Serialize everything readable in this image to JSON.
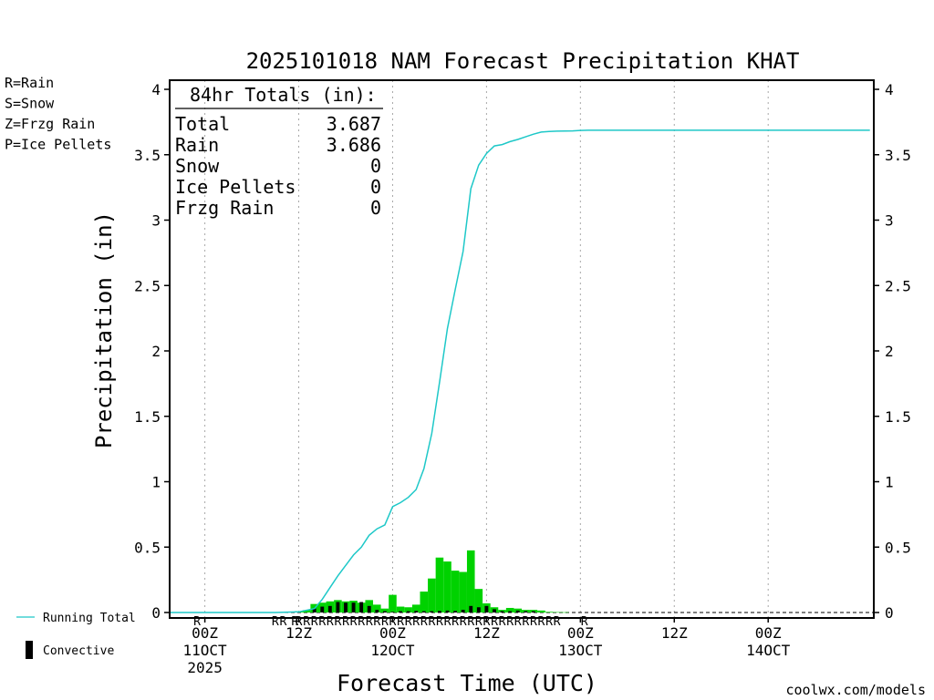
{
  "chart_data": {
    "type": "bar",
    "title": "2025101018 NAM Forecast Precipitation KHAT",
    "ylabel": "Precipitation  (in)",
    "xlabel": "Forecast Time (UTC)",
    "ylim": [
      0,
      4
    ],
    "y_ticks": [
      0,
      0.5,
      1,
      1.5,
      2,
      2.5,
      3,
      3.5,
      4
    ],
    "y_tick_labels": [
      "0",
      "0.5",
      "1",
      "1.5",
      "2",
      "2.5",
      "3",
      "3.5",
      "4"
    ],
    "x_unit": "forecast hour",
    "xlim": [
      -4.5,
      85.5
    ],
    "grid": "vertical dotted at 12-hour ticks",
    "x_ticks": [
      {
        "hour": 0,
        "lines": [
          "00Z",
          "11OCT",
          "2025"
        ]
      },
      {
        "hour": 12,
        "lines": [
          "12Z"
        ]
      },
      {
        "hour": 24,
        "lines": [
          "00Z",
          "12OCT"
        ]
      },
      {
        "hour": 36,
        "lines": [
          "12Z"
        ]
      },
      {
        "hour": 48,
        "lines": [
          "00Z",
          "13OCT"
        ]
      },
      {
        "hour": 60,
        "lines": [
          "12Z"
        ]
      },
      {
        "hour": 72,
        "lines": [
          "00Z",
          "14OCT"
        ]
      }
    ],
    "totals_box": {
      "heading": "84hr Totals (in):",
      "rows": [
        {
          "label": "Total",
          "value": "3.687"
        },
        {
          "label": "Rain",
          "value": "3.686"
        },
        {
          "label": "Snow",
          "value": "0"
        },
        {
          "label": "Ice Pellets",
          "value": "0"
        },
        {
          "label": "Frzg Rain",
          "value": "0"
        }
      ]
    },
    "series": [
      {
        "name": "Running Total",
        "type": "line",
        "color": "#1ec8c8",
        "x": [
          -5,
          9,
          12,
          14,
          15,
          16,
          17,
          18,
          19,
          20,
          21,
          22,
          23,
          24,
          25,
          26,
          27,
          28,
          29,
          30,
          31,
          32,
          33,
          34,
          35,
          36,
          37,
          38,
          39,
          40,
          41,
          42,
          43,
          44,
          45,
          46,
          47,
          48,
          49,
          50,
          60,
          70,
          80,
          85
        ],
        "values": [
          0,
          0,
          0.005,
          0.03,
          0.1,
          0.19,
          0.28,
          0.36,
          0.44,
          0.5,
          0.59,
          0.64,
          0.67,
          0.81,
          0.84,
          0.88,
          0.94,
          1.1,
          1.37,
          1.76,
          2.17,
          2.47,
          2.76,
          3.24,
          3.42,
          3.51,
          3.567,
          3.578,
          3.6,
          3.617,
          3.637,
          3.657,
          3.673,
          3.678,
          3.68,
          3.681,
          3.682,
          3.686,
          3.687,
          3.687,
          3.687,
          3.687,
          3.687,
          3.687
        ]
      },
      {
        "name": "Rain",
        "type": "bar",
        "color": "#00d200",
        "x": [
          9,
          10,
          11,
          12,
          13,
          14,
          15,
          16,
          17,
          18,
          19,
          20,
          21,
          22,
          23,
          24,
          25,
          26,
          27,
          28,
          29,
          30,
          31,
          32,
          33,
          34,
          35,
          36,
          37,
          38,
          39,
          40,
          41,
          42,
          43,
          44,
          45,
          46
        ],
        "values": [
          0.002,
          0.003,
          0.005,
          0.01,
          0.018,
          0.065,
          0.075,
          0.085,
          0.095,
          0.085,
          0.09,
          0.075,
          0.095,
          0.06,
          0.03,
          0.135,
          0.045,
          0.04,
          0.06,
          0.16,
          0.26,
          0.42,
          0.39,
          0.32,
          0.31,
          0.475,
          0.18,
          0.07,
          0.04,
          0.02,
          0.035,
          0.03,
          0.02,
          0.02,
          0.015,
          0.005,
          0.003,
          0.002
        ]
      },
      {
        "name": "Convective",
        "type": "bar",
        "color": "#000000",
        "x": [
          14,
          15,
          16,
          17,
          18,
          19,
          20,
          21,
          22,
          23,
          24,
          25,
          26,
          27,
          28,
          29,
          30,
          31,
          32,
          33,
          34,
          35,
          36,
          37,
          38,
          39,
          40,
          41,
          42
        ],
        "values": [
          0.03,
          0.045,
          0.05,
          0.08,
          0.075,
          0.075,
          0.08,
          0.05,
          0.02,
          0.01,
          0.005,
          0.01,
          0.01,
          0.012,
          0.01,
          0.01,
          0.012,
          0.015,
          0.012,
          0.02,
          0.05,
          0.04,
          0.05,
          0.025,
          0.01,
          0.01,
          0.015,
          0.01,
          0.01
        ]
      }
    ],
    "ptype_row": {
      "color": "#00d200",
      "marks": [
        {
          "hour": -1,
          "code": "R"
        },
        {
          "hour": 9,
          "code": "R"
        },
        {
          "hour": 10,
          "code": "R"
        },
        {
          "hour": 11.5,
          "code": "R"
        },
        {
          "hour": 12,
          "code": "R"
        },
        {
          "hour": 13,
          "code": "R"
        },
        {
          "hour": 14,
          "code": "R"
        },
        {
          "hour": 15,
          "code": "R"
        },
        {
          "hour": 16,
          "code": "R"
        },
        {
          "hour": 17,
          "code": "R"
        },
        {
          "hour": 18,
          "code": "R"
        },
        {
          "hour": 19,
          "code": "R"
        },
        {
          "hour": 20,
          "code": "R"
        },
        {
          "hour": 21,
          "code": "R"
        },
        {
          "hour": 22,
          "code": "R"
        },
        {
          "hour": 23,
          "code": "R"
        },
        {
          "hour": 24,
          "code": "R"
        },
        {
          "hour": 25,
          "code": "R"
        },
        {
          "hour": 26,
          "code": "R"
        },
        {
          "hour": 27,
          "code": "R"
        },
        {
          "hour": 28,
          "code": "R"
        },
        {
          "hour": 29,
          "code": "R"
        },
        {
          "hour": 30,
          "code": "R"
        },
        {
          "hour": 31,
          "code": "R"
        },
        {
          "hour": 32,
          "code": "R"
        },
        {
          "hour": 33,
          "code": "R"
        },
        {
          "hour": 34,
          "code": "R"
        },
        {
          "hour": 35,
          "code": "R"
        },
        {
          "hour": 36,
          "code": "R"
        },
        {
          "hour": 37,
          "code": "R"
        },
        {
          "hour": 38,
          "code": "R"
        },
        {
          "hour": 39,
          "code": "R"
        },
        {
          "hour": 40,
          "code": "R"
        },
        {
          "hour": 41,
          "code": "R"
        },
        {
          "hour": 42,
          "code": "R"
        },
        {
          "hour": 43,
          "code": "R"
        },
        {
          "hour": 44,
          "code": "R"
        },
        {
          "hour": 45,
          "code": "R"
        },
        {
          "hour": 48.5,
          "code": "R"
        }
      ]
    }
  },
  "legend": {
    "ptype_keys": [
      {
        "label": "R=Rain",
        "color": "#22cc22"
      },
      {
        "label": "S=Snow",
        "color": "#3355ee"
      },
      {
        "label": "Z=Frzg Rain",
        "color": "#ff8822"
      },
      {
        "label": "P=Ice Pellets",
        "color": "#ee2288"
      }
    ],
    "series_keys": [
      {
        "label": "Running Total",
        "color": "#1ec8c8"
      },
      {
        "label": "Convective",
        "color": "#000000"
      }
    ]
  },
  "credit": {
    "text": "coolwx.com/models",
    "color": "#cc1111"
  }
}
